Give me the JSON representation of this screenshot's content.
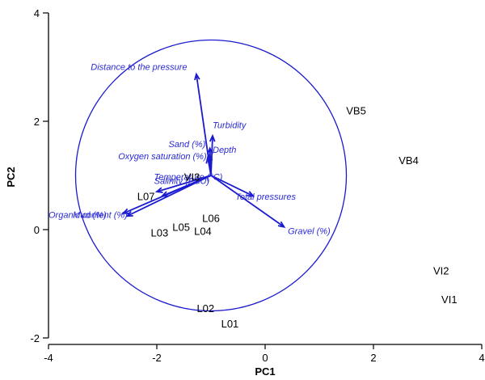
{
  "chart_data": {
    "type": "scatter",
    "title": "",
    "xlabel": "PC1",
    "ylabel": "PC2",
    "xlim": [
      -4,
      4
    ],
    "ylim": [
      -2,
      4
    ],
    "xticks": [
      "-4",
      "-2",
      "0",
      "2",
      "4"
    ],
    "yticks": [
      "-2",
      "0",
      "2",
      "4"
    ],
    "grid": false,
    "sites": [
      {
        "label": "VB5",
        "x": 1.68,
        "y": 2.2
      },
      {
        "label": "VB4",
        "x": 2.65,
        "y": 1.28
      },
      {
        "label": "VI2",
        "x": 3.25,
        "y": -0.75
      },
      {
        "label": "VI1",
        "x": 3.4,
        "y": -1.28
      },
      {
        "label": "VI3",
        "x": -1.35,
        "y": 0.98
      },
      {
        "label": "L07",
        "x": -2.2,
        "y": 0.62
      },
      {
        "label": "L06",
        "x": -1.0,
        "y": 0.22
      },
      {
        "label": "L05",
        "x": -1.55,
        "y": 0.05
      },
      {
        "label": "L04",
        "x": -1.15,
        "y": -0.02
      },
      {
        "label": "L03",
        "x": -1.95,
        "y": -0.05
      },
      {
        "label": "L02",
        "x": -1.1,
        "y": -1.45
      },
      {
        "label": "L01",
        "x": -0.65,
        "y": -1.73
      }
    ],
    "origin": {
      "x": -1.0,
      "y": 1.0
    },
    "circle_radius": 2.5,
    "vectors": [
      {
        "name": "Distance to the pressure",
        "x": -1.27,
        "y": 2.87
      },
      {
        "name": "Turbidity",
        "x": -0.97,
        "y": 1.73
      },
      {
        "name": "Depth",
        "x": -1.03,
        "y": 1.38
      },
      {
        "name": "Sand (%)",
        "x": -1.02,
        "y": 1.5
      },
      {
        "name": "Oxygen saturation (%)",
        "x": -1.06,
        "y": 1.33
      },
      {
        "name": "Temperature (°C)",
        "x": -2.0,
        "y": 0.7
      },
      {
        "name": "Salinity (PSU)",
        "x": -1.9,
        "y": 0.62
      },
      {
        "name": "Organic content (%)",
        "x": -2.62,
        "y": 0.3
      },
      {
        "name": "Mud (%)",
        "x": -2.55,
        "y": 0.25
      },
      {
        "name": "Total pressures",
        "x": -0.22,
        "y": 0.62
      },
      {
        "name": "Gravel (%)",
        "x": 0.35,
        "y": 0.05
      }
    ],
    "vector_labels": [
      {
        "text": "Distance to the pressure",
        "x": -3.22,
        "y": 2.95,
        "anchor": "start"
      },
      {
        "text": "Turbidity",
        "x": -0.97,
        "y": 1.87,
        "anchor": "start"
      },
      {
        "text": "Depth",
        "x": -0.97,
        "y": 1.42,
        "anchor": "start"
      },
      {
        "text": "Sand (%)",
        "x": -1.1,
        "y": 1.52,
        "anchor": "end"
      },
      {
        "text": "Oxygen saturation (%)",
        "x": -1.08,
        "y": 1.3,
        "anchor": "end"
      },
      {
        "text": "Temperature (°C)",
        "x": -2.05,
        "y": 0.92,
        "anchor": "start"
      },
      {
        "text": "Salinity (PSU)",
        "x": -2.05,
        "y": 0.84,
        "anchor": "start"
      },
      {
        "text": "Organic content (%)",
        "x": -4.0,
        "y": 0.22,
        "anchor": "start"
      },
      {
        "text": "Mud (%)",
        "x": -3.55,
        "y": 0.22,
        "anchor": "start"
      },
      {
        "text": "Total pressures",
        "x": -0.55,
        "y": 0.55,
        "anchor": "start"
      },
      {
        "text": "Gravel (%)",
        "x": 0.42,
        "y": -0.08,
        "anchor": "start"
      }
    ]
  }
}
